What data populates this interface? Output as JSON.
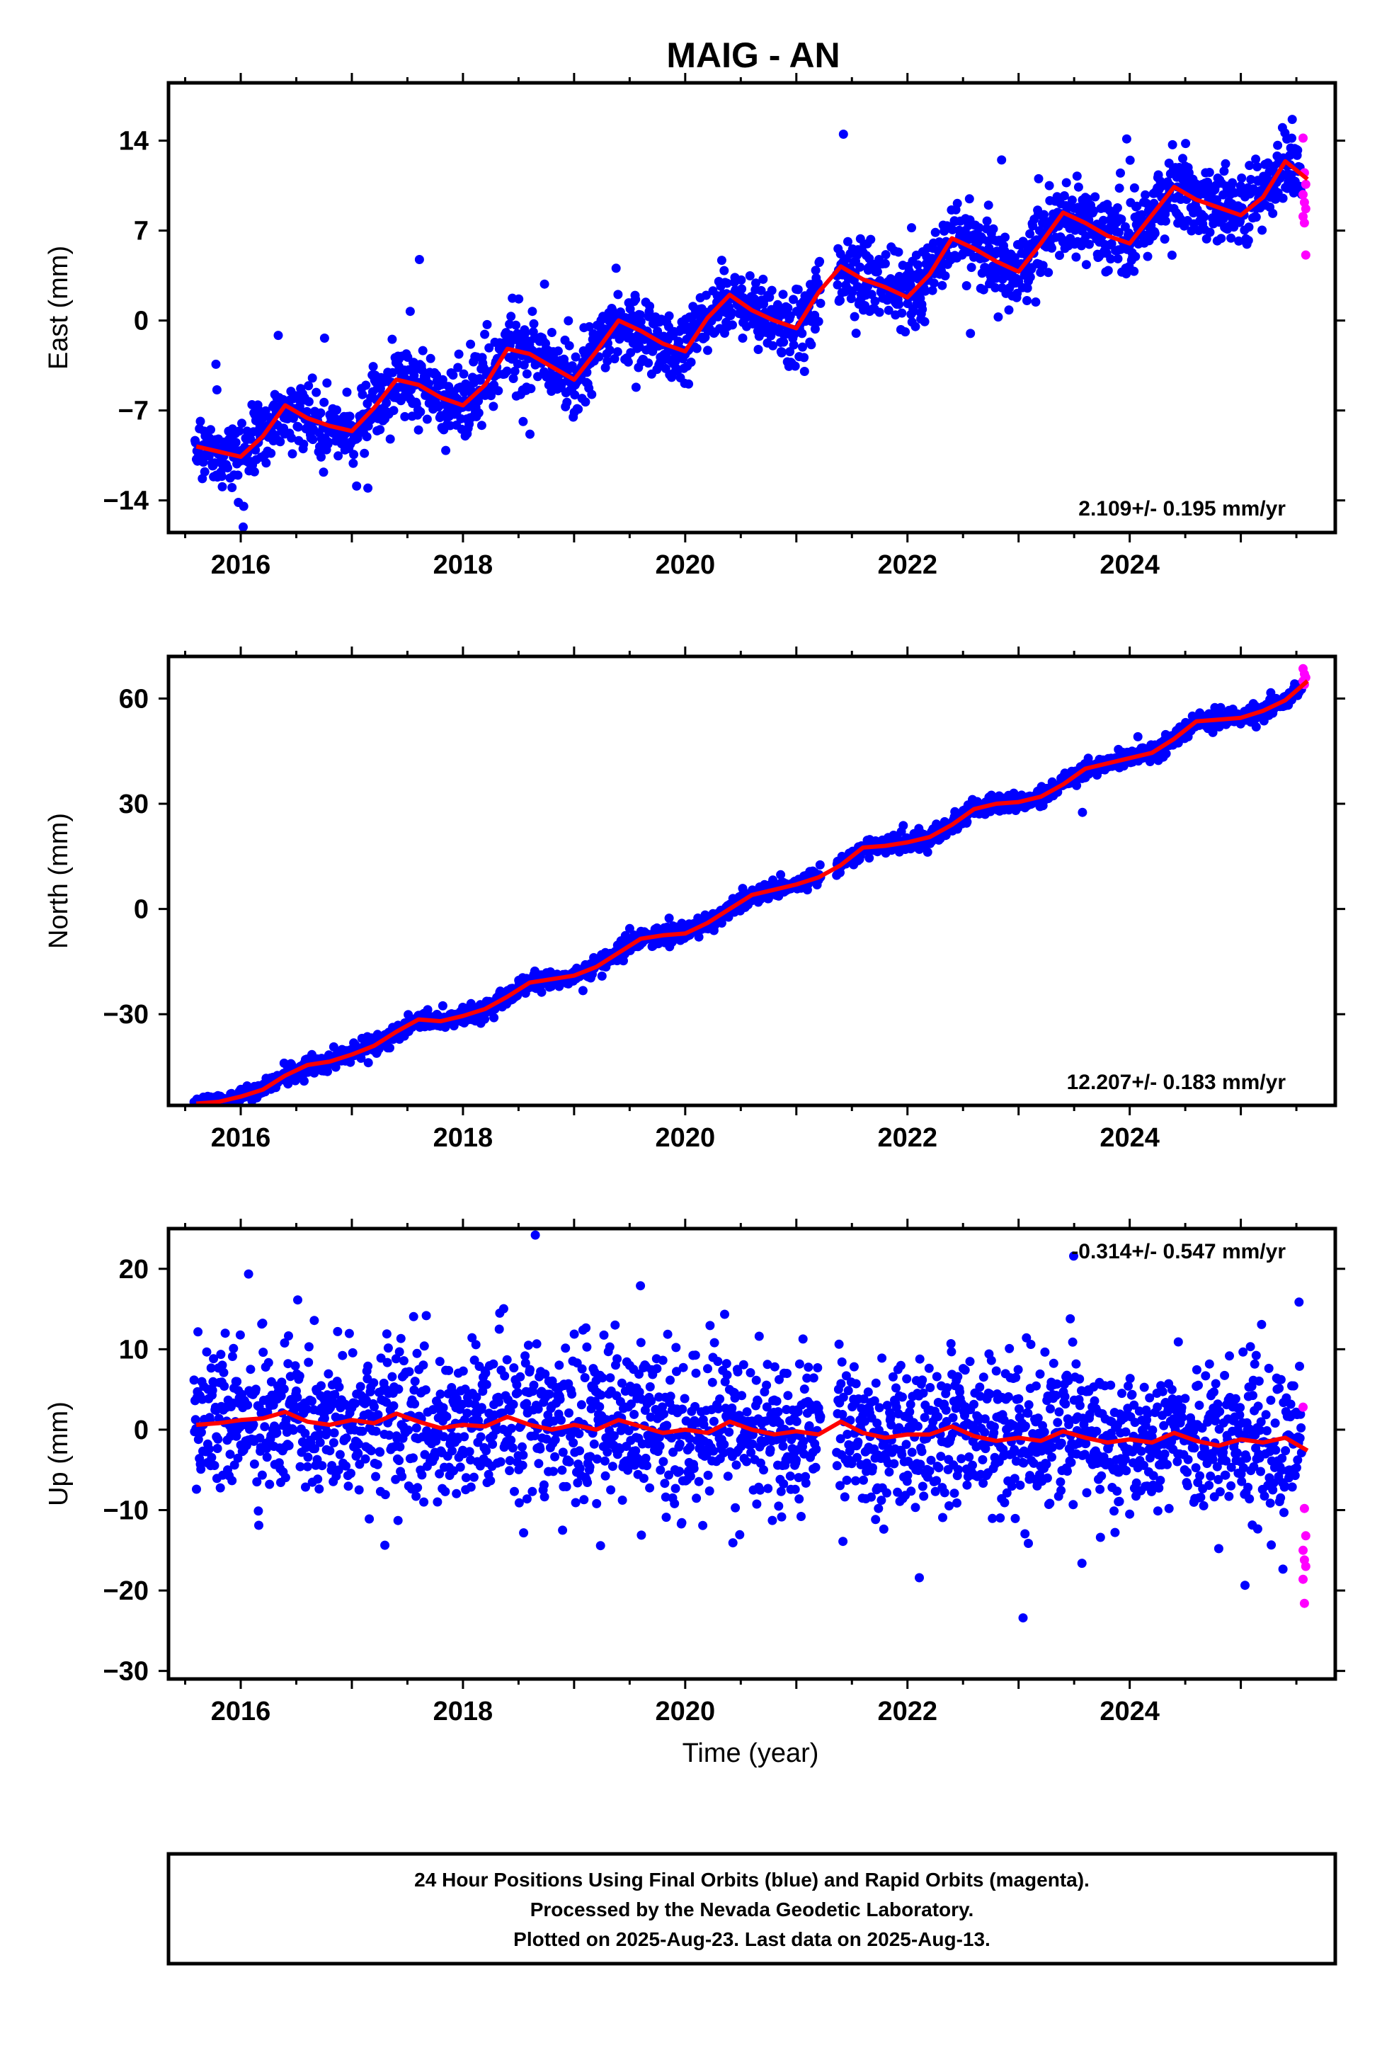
{
  "title": "MAIG - AN",
  "xlabel": "Time (year)",
  "colors": {
    "final_orbits": "#0000ff",
    "rapid_orbits": "#ff00ff",
    "model_fit": "#ff0000"
  },
  "chart_data": [
    {
      "type": "scatter",
      "name": "east",
      "ylabel": "East (mm)",
      "rate_label": "2.109+/- 0.195 mm/yr",
      "xlim": [
        2015.35,
        2025.85
      ],
      "ylim": [
        -16.5,
        18.5
      ],
      "yticks": [
        -14,
        -7,
        0,
        7,
        14
      ],
      "ytick_labels": [
        "−14",
        "−7",
        "0",
        "7",
        "14"
      ],
      "xticks": [
        2016,
        2018,
        2020,
        2022,
        2024
      ],
      "xtick_labels": [
        "2016",
        "2018",
        "2020",
        "2022",
        "2024"
      ],
      "rate_mm_per_yr": 2.109,
      "trend_at_start": -10.9,
      "seasonal_amplitude": 1.8,
      "scatter_sigma": 1.4,
      "rapid_last_points": [
        14.2,
        11.5,
        10.6,
        9.8,
        9.2,
        8.7,
        8.1,
        7.6,
        5.1
      ],
      "fit_line": {
        "x": [
          2015.6,
          2015.8,
          2016.0,
          2016.2,
          2016.4,
          2016.6,
          2016.8,
          2017.0,
          2017.2,
          2017.4,
          2017.6,
          2017.8,
          2018.0,
          2018.2,
          2018.4,
          2018.6,
          2018.8,
          2019.0,
          2019.2,
          2019.4,
          2019.6,
          2019.8,
          2020.0,
          2020.2,
          2020.4,
          2020.6,
          2020.8,
          2021.0,
          2021.2,
          2021.4,
          2021.6,
          2021.8,
          2022.0,
          2022.2,
          2022.4,
          2022.6,
          2022.8,
          2023.0,
          2023.2,
          2023.4,
          2023.6,
          2023.8,
          2024.0,
          2024.2,
          2024.4,
          2024.6,
          2024.8,
          2025.0,
          2025.2,
          2025.4,
          2025.6
        ],
        "y": [
          -9.8,
          -10.2,
          -10.6,
          -9.0,
          -6.6,
          -7.6,
          -8.2,
          -8.6,
          -6.8,
          -4.6,
          -5.0,
          -6.0,
          -6.6,
          -5.0,
          -2.2,
          -2.6,
          -3.6,
          -4.6,
          -2.4,
          0.0,
          -0.8,
          -1.8,
          -2.4,
          0.2,
          2.0,
          0.8,
          0.0,
          -0.6,
          2.2,
          4.2,
          3.2,
          2.6,
          1.8,
          3.6,
          6.4,
          5.6,
          4.6,
          3.8,
          6.0,
          8.4,
          7.6,
          6.6,
          6.0,
          8.2,
          10.4,
          9.4,
          8.8,
          8.2,
          9.6,
          12.4,
          11.0
        ]
      }
    },
    {
      "type": "scatter",
      "name": "north",
      "ylabel": "North (mm)",
      "rate_label": "12.207+/- 0.183 mm/yr",
      "xlim": [
        2015.35,
        2025.85
      ],
      "ylim": [
        -56,
        72
      ],
      "yticks": [
        -30,
        0,
        30,
        60
      ],
      "ytick_labels": [
        "−30",
        "0",
        "30",
        "60"
      ],
      "xticks": [
        2016,
        2018,
        2020,
        2022,
        2024
      ],
      "xtick_labels": [
        "2016",
        "2018",
        "2020",
        "2022",
        "2024"
      ],
      "rate_mm_per_yr": 12.207,
      "trend_at_start": -51.0,
      "seasonal_amplitude": 1.3,
      "scatter_sigma": 1.2,
      "rapid_last_points": [
        68.5,
        67.0,
        66.0,
        65.0,
        64.0
      ],
      "fit_line": {
        "x": [
          2015.6,
          2015.8,
          2016.0,
          2016.2,
          2016.4,
          2016.6,
          2016.8,
          2017.0,
          2017.2,
          2017.4,
          2017.6,
          2017.8,
          2018.0,
          2018.2,
          2018.4,
          2018.6,
          2018.8,
          2019.0,
          2019.2,
          2019.4,
          2019.6,
          2019.8,
          2020.0,
          2020.2,
          2020.4,
          2020.6,
          2020.8,
          2021.0,
          2021.2,
          2021.4,
          2021.6,
          2021.8,
          2022.0,
          2022.2,
          2022.4,
          2022.6,
          2022.8,
          2023.0,
          2023.2,
          2023.4,
          2023.6,
          2023.8,
          2024.0,
          2024.2,
          2024.4,
          2024.6,
          2024.8,
          2025.0,
          2025.2,
          2025.4,
          2025.6
        ],
        "y": [
          -55.5,
          -55.0,
          -53.5,
          -51.5,
          -47.5,
          -44.5,
          -43.5,
          -41.5,
          -39.0,
          -35.0,
          -31.5,
          -32.0,
          -30.5,
          -28.5,
          -25.0,
          -21.0,
          -20.0,
          -19.0,
          -16.5,
          -12.5,
          -8.5,
          -7.5,
          -7.0,
          -4.0,
          0.0,
          4.0,
          5.5,
          7.0,
          9.0,
          12.5,
          17.5,
          18.0,
          19.0,
          20.5,
          24.0,
          28.5,
          30.0,
          30.5,
          32.0,
          35.5,
          40.0,
          41.5,
          43.0,
          44.5,
          48.5,
          53.5,
          54.0,
          54.5,
          56.5,
          59.5,
          65.0
        ]
      }
    },
    {
      "type": "scatter",
      "name": "up",
      "ylabel": "Up (mm)",
      "rate_label": "-0.314+/- 0.547 mm/yr",
      "xlim": [
        2015.35,
        2025.85
      ],
      "ylim": [
        -31,
        25
      ],
      "yticks": [
        -30,
        -20,
        -10,
        0,
        10,
        20
      ],
      "ytick_labels": [
        "−30",
        "−20",
        "−10",
        "0",
        "10",
        "20"
      ],
      "xticks": [
        2016,
        2018,
        2020,
        2022,
        2024
      ],
      "xtick_labels": [
        "2016",
        "2018",
        "2020",
        "2022",
        "2024"
      ],
      "rate_mm_per_yr": -0.314,
      "trend_at_start": 1.2,
      "seasonal_amplitude": 0.6,
      "scatter_sigma": 4.6,
      "rapid_last_points": [
        2.8,
        -9.8,
        -13.2,
        -15.0,
        -16.2,
        -17.0,
        -18.6,
        -21.6
      ],
      "fit_line": {
        "x": [
          2015.6,
          2015.8,
          2016.0,
          2016.2,
          2016.4,
          2016.6,
          2016.8,
          2017.0,
          2017.2,
          2017.4,
          2017.6,
          2017.8,
          2018.0,
          2018.2,
          2018.4,
          2018.6,
          2018.8,
          2019.0,
          2019.2,
          2019.4,
          2019.6,
          2019.8,
          2020.0,
          2020.2,
          2020.4,
          2020.6,
          2020.8,
          2021.0,
          2021.2,
          2021.4,
          2021.6,
          2021.8,
          2022.0,
          2022.2,
          2022.4,
          2022.6,
          2022.8,
          2023.0,
          2023.2,
          2023.4,
          2023.6,
          2023.8,
          2024.0,
          2024.2,
          2024.4,
          2024.6,
          2024.8,
          2025.0,
          2025.2,
          2025.4,
          2025.6
        ],
        "y": [
          0.6,
          0.8,
          1.2,
          1.4,
          2.2,
          1.0,
          0.6,
          1.2,
          0.8,
          2.0,
          1.0,
          0.2,
          0.6,
          0.4,
          1.6,
          0.6,
          0.0,
          0.6,
          0.0,
          1.2,
          0.4,
          -0.4,
          0.0,
          -0.4,
          1.0,
          0.0,
          -0.6,
          -0.2,
          -0.6,
          1.0,
          -0.4,
          -1.0,
          -0.6,
          -0.6,
          0.4,
          -0.8,
          -1.4,
          -1.0,
          -1.4,
          -0.2,
          -1.0,
          -1.6,
          -1.2,
          -1.6,
          -0.4,
          -1.4,
          -2.0,
          -1.2,
          -1.6,
          -1.0,
          -2.6
        ]
      }
    }
  ],
  "footer": {
    "line1": "24 Hour Positions Using Final Orbits (blue) and Rapid Orbits (magenta).",
    "line2": "Processed by the Nevada Geodetic Laboratory.",
    "line3": "Plotted on 2025-Aug-23. Last data on 2025-Aug-13."
  }
}
